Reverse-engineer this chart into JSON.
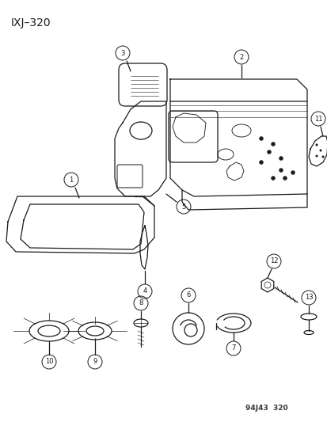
{
  "title": "IXJ–320",
  "footer": "94J43  320",
  "background_color": "#ffffff",
  "line_color": "#1a1a1a",
  "text_color": "#1a1a1a",
  "figsize": [
    4.14,
    5.33
  ],
  "dpi": 100
}
